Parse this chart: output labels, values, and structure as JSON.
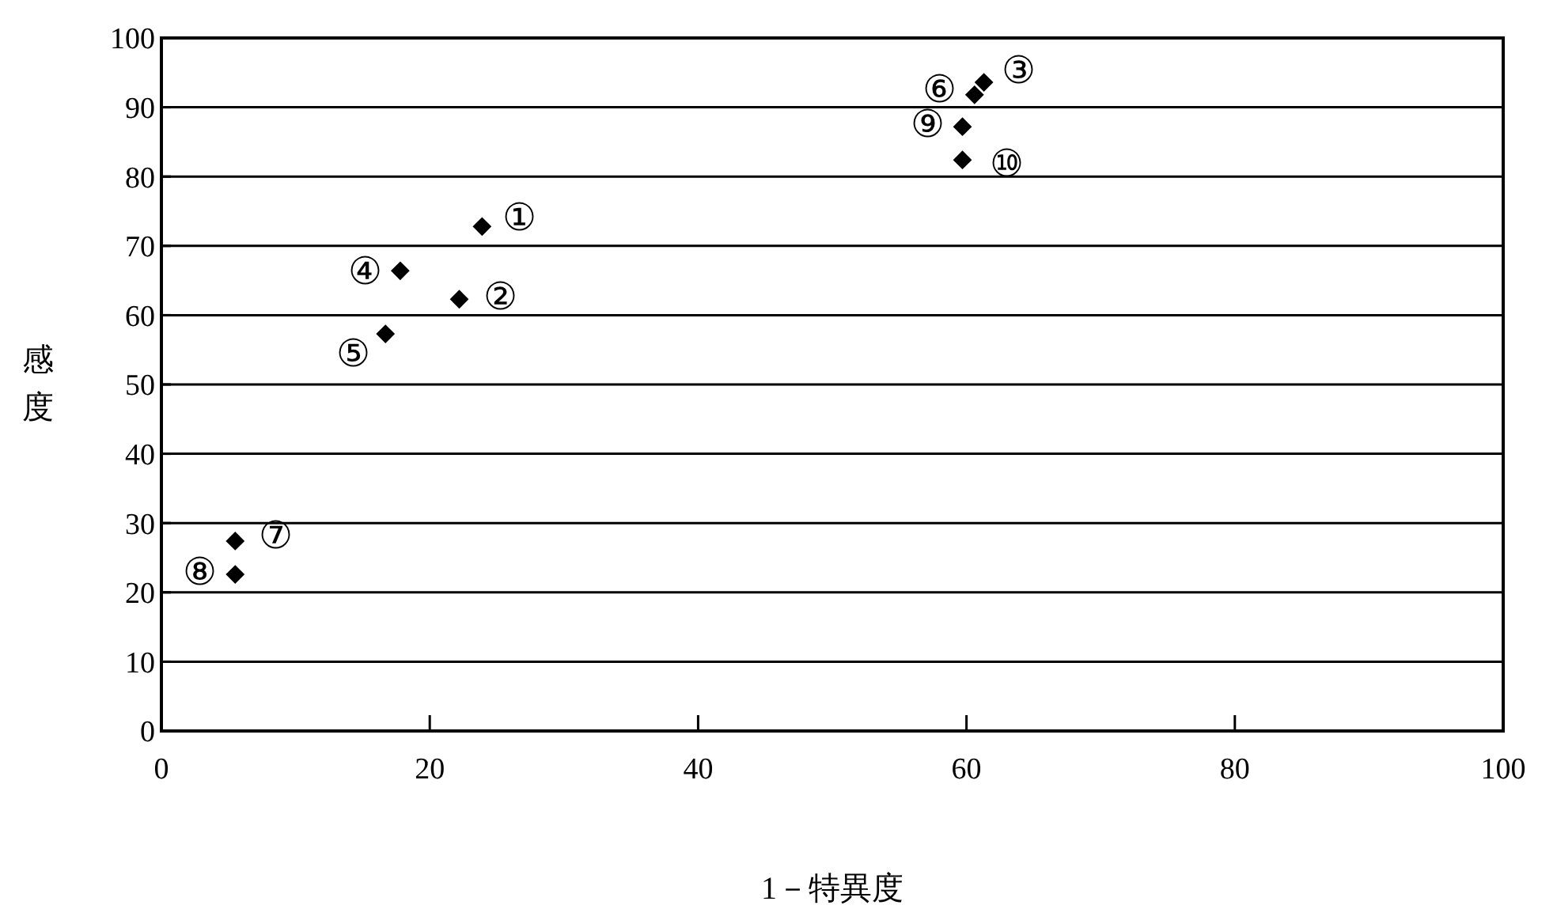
{
  "chart_data": {
    "type": "scatter",
    "xlabel": "1－特異度",
    "ylabel": "感度",
    "x": [
      23.9,
      22.2,
      61.3,
      17.8,
      16.7,
      60.6,
      5.5,
      5.5,
      59.7,
      59.7
    ],
    "series": [
      {
        "color": "#000000",
        "values": [
          72.8,
          62.3,
          93.6,
          66.4,
          57.3,
          91.8,
          27.4,
          22.6,
          87.2,
          82.4
        ]
      }
    ],
    "xlim": [
      0,
      100
    ],
    "xticks": [
      0,
      20,
      40,
      60,
      80,
      100
    ],
    "ylim": [
      0,
      100
    ],
    "yticks": [
      0,
      10,
      20,
      30,
      40,
      50,
      60,
      70,
      80,
      90,
      100
    ],
    "grid": "y",
    "marker": "diamond",
    "annotations": [
      {
        "text": "①",
        "x": 23.9,
        "y": 72.8
      },
      {
        "text": "②",
        "x": 22.2,
        "y": 62.3
      },
      {
        "text": "③",
        "x": 61.3,
        "y": 93.6
      },
      {
        "text": "④",
        "x": 17.8,
        "y": 66.4
      },
      {
        "text": "⑤",
        "x": 16.7,
        "y": 57.3
      },
      {
        "text": "⑥",
        "x": 60.6,
        "y": 91.8
      },
      {
        "text": "⑦",
        "x": 5.5,
        "y": 27.4
      },
      {
        "text": "⑧",
        "x": 5.5,
        "y": 22.6
      },
      {
        "text": "⑨",
        "x": 59.7,
        "y": 87.2
      },
      {
        "text": "⑩",
        "x": 59.7,
        "y": 82.4
      }
    ]
  }
}
